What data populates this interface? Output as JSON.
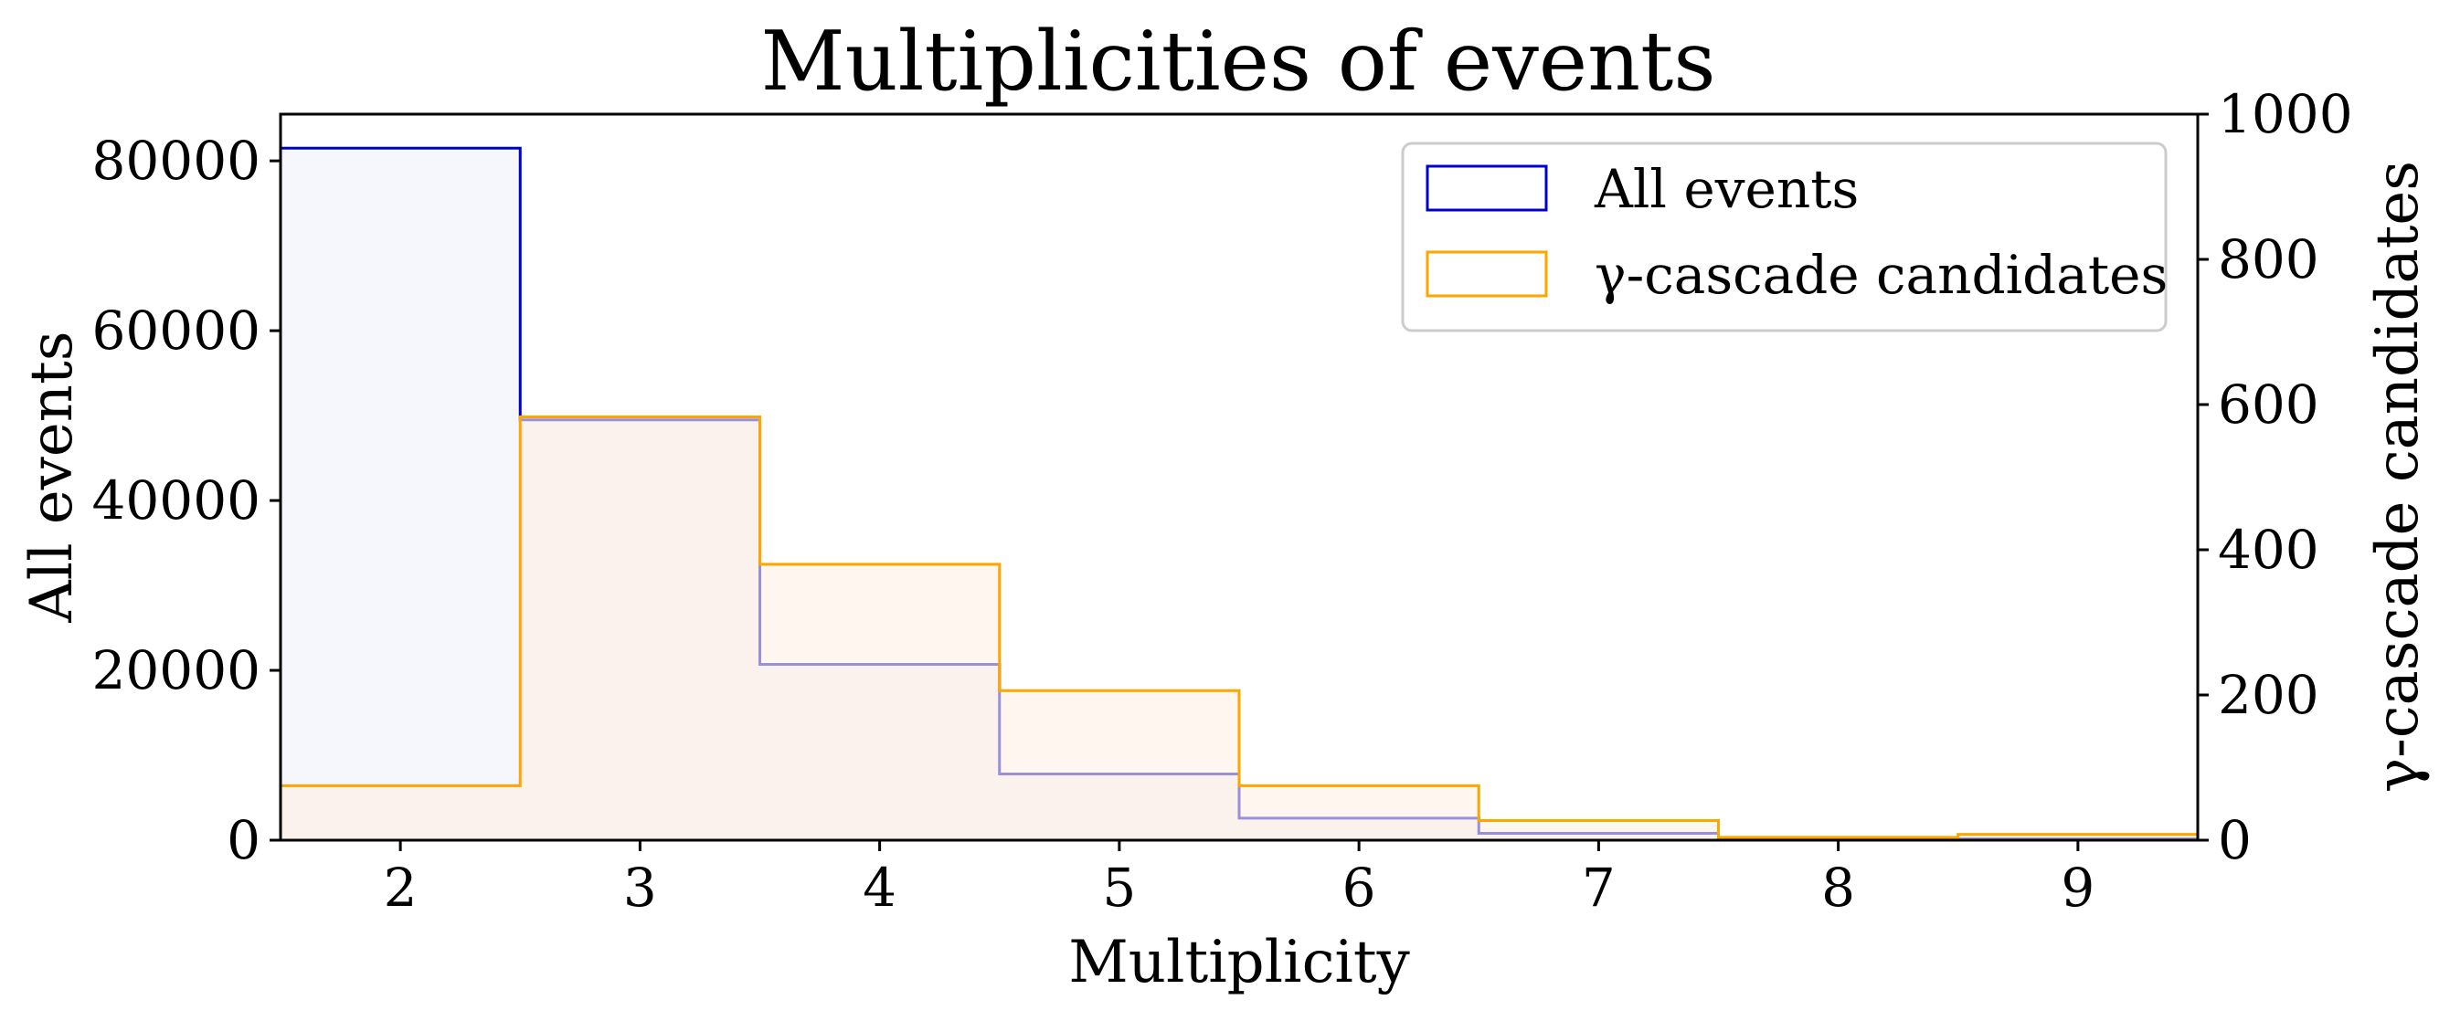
{
  "chart_data": {
    "type": "bar",
    "title": "Multiplicities of events",
    "xlabel": "Multiplicity",
    "ylabel": "All events",
    "ylabel_right": "γ-cascade candidates",
    "categories": [
      "2",
      "3",
      "4",
      "5",
      "6",
      "7",
      "8",
      "9"
    ],
    "x": [
      2,
      3,
      4,
      5,
      6,
      7,
      8,
      9
    ],
    "xlim": [
      1.5,
      9.5
    ],
    "xticks": [
      2,
      3,
      4,
      5,
      6,
      7,
      8,
      9
    ],
    "ylim": [
      0,
      85500
    ],
    "yticks": [
      0,
      20000,
      40000,
      60000,
      80000
    ],
    "ylim_right": [
      0,
      1000
    ],
    "yticks_right": [
      0,
      200,
      400,
      600,
      800,
      1000
    ],
    "grid": false,
    "legend_position": "top-right",
    "series": [
      {
        "name": "All events",
        "axis": "left",
        "color": "#0000cc",
        "fill": "#f0f0fc",
        "values": [
          81500,
          49500,
          20700,
          7800,
          2600,
          800,
          200,
          150
        ]
      },
      {
        "name": "γ-cascade candidates",
        "axis": "right",
        "color": "#ffa500",
        "fill": "#fff0e5",
        "values": [
          75,
          583,
          380,
          206,
          75,
          27,
          4,
          8
        ]
      }
    ]
  }
}
